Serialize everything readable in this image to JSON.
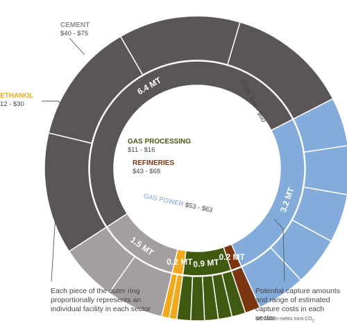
{
  "chart_data": {
    "type": "sunburst",
    "title": "",
    "sectors": [
      {
        "name": "COAL",
        "amount": 6.4,
        "amount_label": "6.4 MT",
        "cost_label": "$46 - $60",
        "color": "#5a5657",
        "facilities": 4
      },
      {
        "name": "GAS POWER",
        "amount": 3.2,
        "amount_label": "3.2 MT",
        "cost_label": "$53 - $63",
        "color": "#83acdb",
        "facilities": 5
      },
      {
        "name": "REFINERIES",
        "amount": 0.2,
        "amount_label": "0.2 MT",
        "cost_label": "$43 - $68",
        "color": "#7b3510",
        "facilities": 1
      },
      {
        "name": "GAS PROCESSING",
        "amount": 0.9,
        "amount_label": "0.9 MT",
        "cost_label": "$11 - $16",
        "color": "#3f5a10",
        "facilities": 5
      },
      {
        "name": "ETHANOL",
        "amount": 0.2,
        "amount_label": "0.2 MT",
        "cost_label": "12 - $30",
        "color": "#f0a91c",
        "facilities": 2
      },
      {
        "name": "CEMENT",
        "amount": 1.5,
        "amount_label": "1.5 MT",
        "cost_label": "$40 - $75",
        "color": "#a39e9f",
        "facilities": 2
      }
    ],
    "annotations": {
      "outer_ring": "Each piece of the outer ring proportionally represents an individual facility in each sector",
      "inner_ring": "Potential capture amounts and range of estimated capture costs in each sector",
      "footnote": "MT: Million metric tons CO",
      "footnote_sub": "2"
    }
  }
}
